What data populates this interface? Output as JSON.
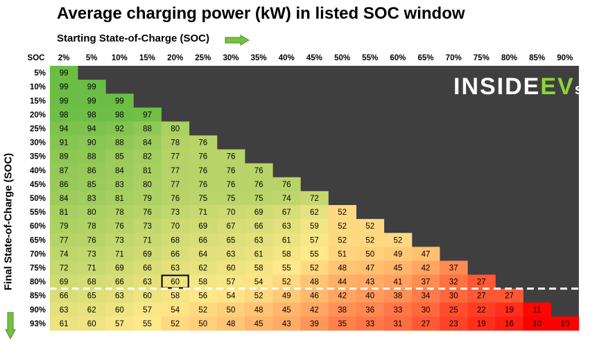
{
  "title": "Average charging power (kW) in listed SOC window",
  "x_axis_title": "Starting State-of-Charge (SOC)",
  "y_axis_title": "Final State-of-Charge (SOC)",
  "corner_label": "SOC",
  "logo": {
    "part1": "INSIDE",
    "part2": "EV",
    "part3": "s"
  },
  "colors": {
    "background_dark": "#3f3f3f",
    "high": "#6bbd45",
    "mid": "#ffe98a",
    "low": "#ff0000",
    "arrow": "#77c043",
    "dashed_line": "#ffffff",
    "highlight_border": "#000000"
  },
  "chart_data": {
    "type": "heatmap",
    "title": "Average charging power (kW) in listed SOC window",
    "xlabel": "Starting State-of-Charge (SOC)",
    "ylabel": "Final State-of-Charge (SOC)",
    "x_categories": [
      "2%",
      "5%",
      "10%",
      "15%",
      "20%",
      "25%",
      "30%",
      "35%",
      "40%",
      "45%",
      "50%",
      "55%",
      "60%",
      "65%",
      "70%",
      "75%",
      "80%",
      "85%",
      "90%"
    ],
    "y_categories": [
      "5%",
      "10%",
      "15%",
      "20%",
      "25%",
      "30%",
      "35%",
      "40%",
      "45%",
      "50%",
      "55%",
      "60%",
      "65%",
      "70%",
      "75%",
      "80%",
      "85%",
      "90%",
      "93%"
    ],
    "values": [
      [
        99
      ],
      [
        99,
        99
      ],
      [
        99,
        99,
        99
      ],
      [
        98,
        98,
        98,
        97
      ],
      [
        94,
        94,
        92,
        88,
        80
      ],
      [
        91,
        90,
        88,
        84,
        78,
        76
      ],
      [
        89,
        88,
        85,
        82,
        77,
        76,
        76
      ],
      [
        87,
        86,
        84,
        81,
        77,
        76,
        76,
        76
      ],
      [
        86,
        85,
        83,
        80,
        77,
        76,
        76,
        76,
        76
      ],
      [
        84,
        83,
        81,
        79,
        76,
        75,
        75,
        75,
        74,
        72
      ],
      [
        81,
        80,
        78,
        76,
        73,
        71,
        70,
        69,
        67,
        62,
        52
      ],
      [
        79,
        78,
        76,
        73,
        70,
        69,
        67,
        66,
        63,
        59,
        52,
        52
      ],
      [
        77,
        76,
        73,
        71,
        68,
        66,
        65,
        63,
        61,
        57,
        52,
        52,
        52
      ],
      [
        74,
        73,
        71,
        69,
        66,
        64,
        63,
        61,
        58,
        55,
        51,
        50,
        49,
        47
      ],
      [
        72,
        71,
        69,
        66,
        63,
        62,
        60,
        58,
        55,
        52,
        48,
        47,
        45,
        42,
        37
      ],
      [
        69,
        68,
        66,
        63,
        60,
        58,
        57,
        54,
        52,
        48,
        44,
        43,
        41,
        37,
        32,
        27
      ],
      [
        66,
        65,
        63,
        60,
        58,
        56,
        54,
        52,
        49,
        46,
        42,
        40,
        38,
        34,
        30,
        27,
        27
      ],
      [
        63,
        62,
        60,
        57,
        54,
        52,
        50,
        48,
        45,
        42,
        38,
        36,
        33,
        30,
        25,
        22,
        19,
        11
      ],
      [
        61,
        60,
        57,
        55,
        52,
        50,
        48,
        45,
        43,
        39,
        35,
        33,
        31,
        27,
        23,
        19,
        16,
        10,
        10
      ]
    ],
    "highlighted_cell": {
      "start": "20%",
      "end": "80%",
      "value": 60
    },
    "dashed_line_between": [
      "80%",
      "85%"
    ]
  }
}
